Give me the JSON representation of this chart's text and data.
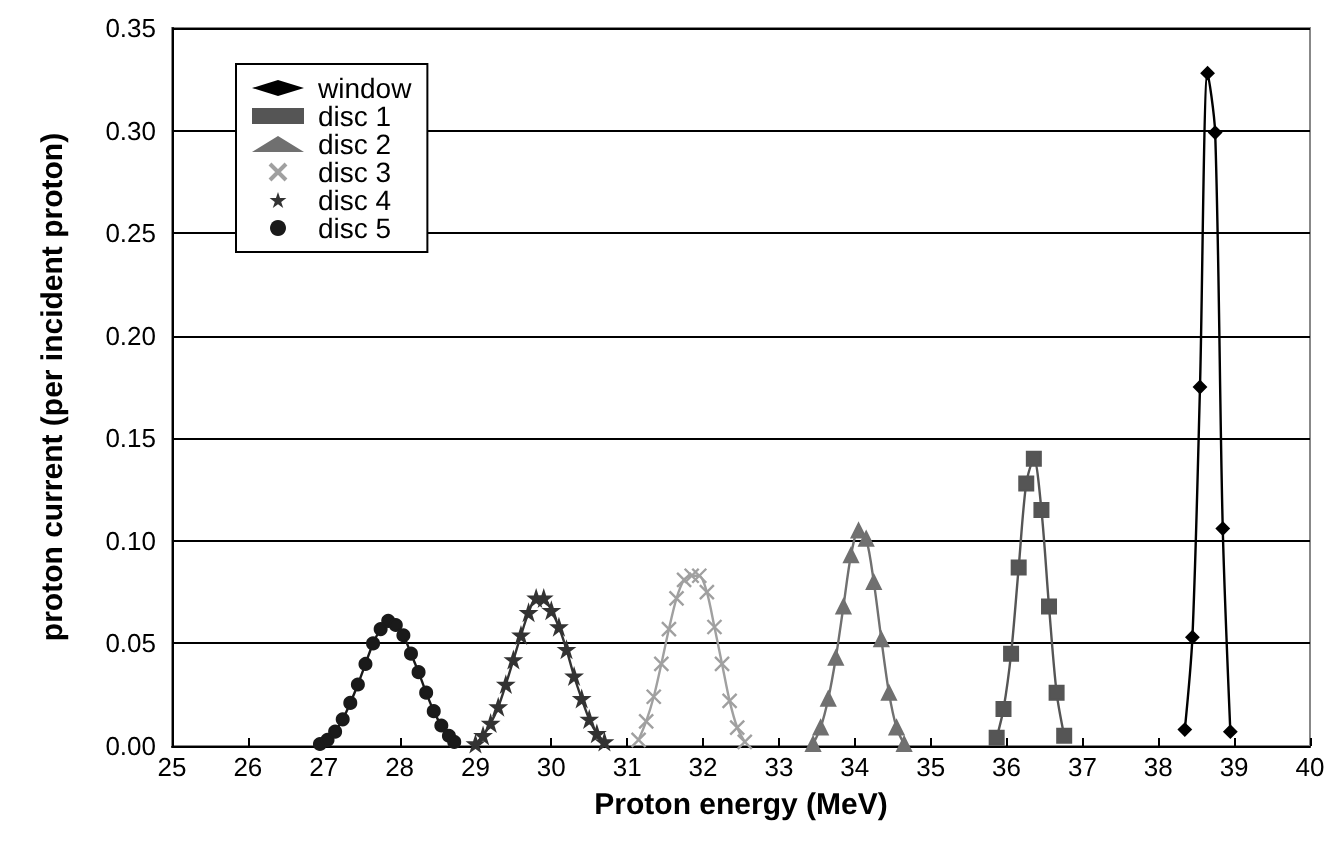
{
  "chart_data": {
    "type": "line",
    "xlabel": "Proton energy (MeV)",
    "ylabel": "proton current (per incident proton)",
    "xlim": [
      25,
      40
    ],
    "xticks": [
      25,
      26,
      27,
      28,
      29,
      30,
      31,
      32,
      33,
      34,
      35,
      36,
      37,
      38,
      39,
      40
    ],
    "ylim": [
      0,
      0.35
    ],
    "yticks": [
      {
        "value": 0,
        "label": "0.00"
      },
      {
        "value": 0.05,
        "label": "0.05"
      },
      {
        "value": 0.1,
        "label": "0.10"
      },
      {
        "value": 0.15,
        "label": "0.15"
      },
      {
        "value": 0.2,
        "label": "0.20"
      },
      {
        "value": 0.25,
        "label": "0.25"
      },
      {
        "value": 0.3,
        "label": "0.30"
      },
      {
        "value": 0.35,
        "label": "0.35"
      }
    ],
    "grid": "y",
    "legend": "top left",
    "line_style": "solid",
    "series": [
      {
        "name": "window",
        "color": "#000000",
        "marker": "diamond",
        "x": [
          38.35,
          38.45,
          38.55,
          38.65,
          38.75,
          38.85,
          38.95
        ],
        "values": [
          0.008,
          0.053,
          0.175,
          0.328,
          0.299,
          0.106,
          0.007
        ]
      },
      {
        "name": "disc 1",
        "color": "#555555",
        "marker": "square",
        "x": [
          35.87,
          35.96,
          36.06,
          36.16,
          36.26,
          36.36,
          36.46,
          36.56,
          36.66,
          36.76
        ],
        "values": [
          0.004,
          0.018,
          0.045,
          0.087,
          0.128,
          0.14,
          0.115,
          0.068,
          0.026,
          0.005
        ]
      },
      {
        "name": "disc 2",
        "color": "#707070",
        "marker": "triangle",
        "x": [
          33.45,
          33.55,
          33.65,
          33.75,
          33.85,
          33.95,
          34.05,
          34.15,
          34.25,
          34.35,
          34.45,
          34.55,
          34.65
        ],
        "values": [
          0.001,
          0.009,
          0.023,
          0.043,
          0.068,
          0.093,
          0.105,
          0.101,
          0.08,
          0.052,
          0.026,
          0.009,
          0.001
        ]
      },
      {
        "name": "disc 3",
        "color": "#a0a0a0",
        "marker": "cross",
        "x": [
          31.15,
          31.25,
          31.35,
          31.45,
          31.55,
          31.65,
          31.75,
          31.85,
          31.95,
          32.05,
          32.15,
          32.25,
          32.35,
          32.45,
          32.55
        ],
        "values": [
          0.003,
          0.012,
          0.024,
          0.04,
          0.057,
          0.072,
          0.081,
          0.083,
          0.083,
          0.075,
          0.058,
          0.04,
          0.022,
          0.009,
          0.002
        ]
      },
      {
        "name": "disc 4",
        "color": "#333333",
        "marker": "star",
        "x": [
          29.0,
          29.1,
          29.2,
          29.3,
          29.4,
          29.5,
          29.6,
          29.7,
          29.8,
          29.9,
          30.0,
          30.1,
          30.2,
          30.3,
          30.4,
          30.5,
          30.6,
          30.7
        ],
        "values": [
          0.001,
          0.005,
          0.011,
          0.019,
          0.03,
          0.042,
          0.054,
          0.065,
          0.072,
          0.072,
          0.066,
          0.058,
          0.047,
          0.034,
          0.023,
          0.013,
          0.006,
          0.002
        ]
      },
      {
        "name": "disc 5",
        "color": "#1a1a1a",
        "marker": "circle",
        "x": [
          26.95,
          27.05,
          27.15,
          27.25,
          27.35,
          27.45,
          27.55,
          27.65,
          27.75,
          27.85,
          27.95,
          28.05,
          28.15,
          28.25,
          28.35,
          28.45,
          28.55,
          28.65,
          28.72
        ],
        "values": [
          0.001,
          0.003,
          0.007,
          0.013,
          0.021,
          0.03,
          0.04,
          0.05,
          0.057,
          0.061,
          0.059,
          0.054,
          0.045,
          0.036,
          0.026,
          0.017,
          0.01,
          0.005,
          0.002
        ]
      }
    ]
  }
}
